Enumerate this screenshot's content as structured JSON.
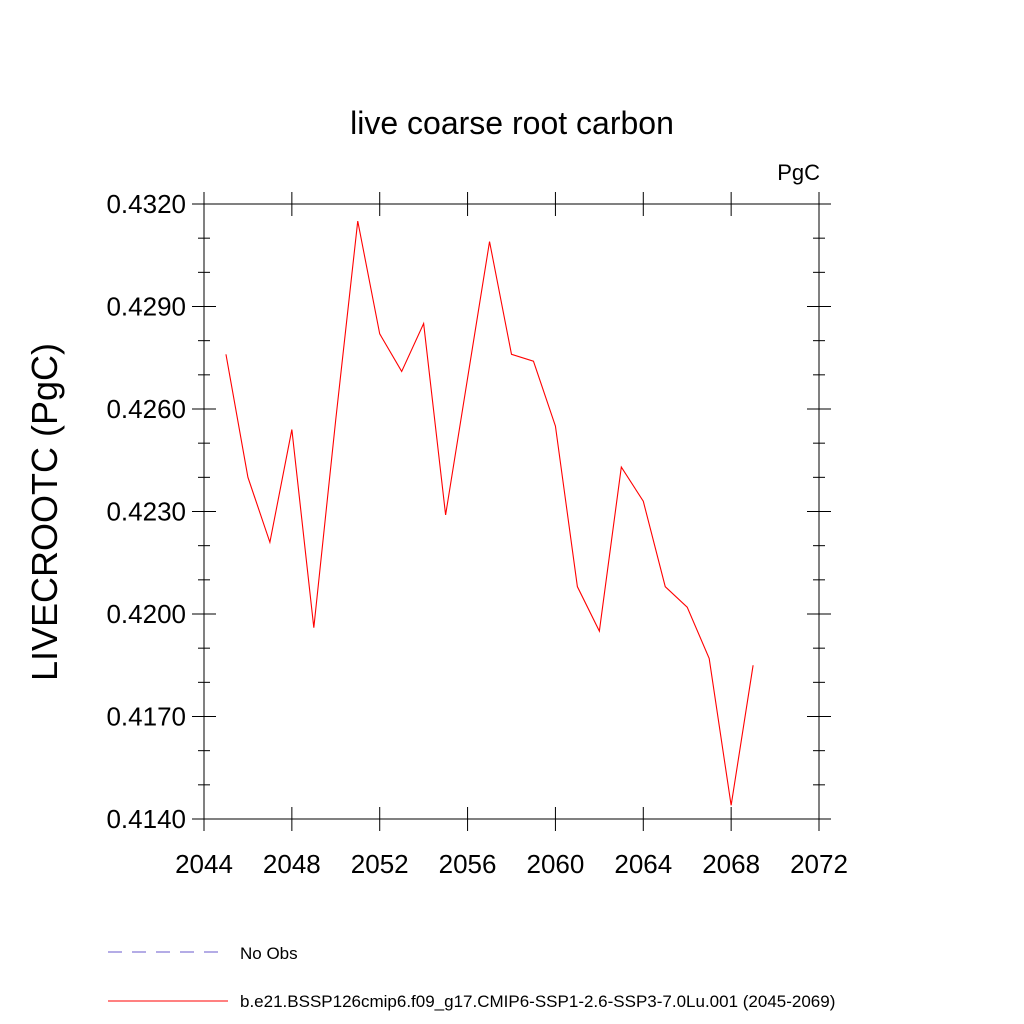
{
  "chart_data": {
    "type": "line",
    "title": "live coarse root carbon",
    "units": "PgC",
    "ylabel": "LIVECROOTC  (PgC)",
    "xlabel": "",
    "xlim": [
      2044,
      2072
    ],
    "ylim": [
      0.414,
      0.432
    ],
    "x_ticks": [
      "2044",
      "2048",
      "2052",
      "2056",
      "2060",
      "2064",
      "2068",
      "2072"
    ],
    "y_ticks": [
      "0.4140",
      "0.4170",
      "0.4200",
      "0.4230",
      "0.4260",
      "0.4290",
      "0.4320"
    ],
    "x_tick_values": [
      2044,
      2048,
      2052,
      2056,
      2060,
      2064,
      2068,
      2072
    ],
    "y_tick_values": [
      0.414,
      0.417,
      0.42,
      0.423,
      0.426,
      0.429,
      0.432
    ],
    "grid": false,
    "legend_position": "bottom",
    "series": [
      {
        "name": "b.e21.BSSP126cmip6.f09_g17.CMIP6-SSP1-2.6-SSP3-7.0Lu.001 (2045-2069)",
        "color": "#ff0000",
        "style": "solid",
        "x": [
          2045,
          2046,
          2047,
          2048,
          2049,
          2050,
          2051,
          2052,
          2053,
          2054,
          2055,
          2056,
          2057,
          2058,
          2059,
          2060,
          2061,
          2062,
          2063,
          2064,
          2065,
          2066,
          2067,
          2068,
          2069
        ],
        "y": [
          0.4276,
          0.424,
          0.4221,
          0.4254,
          0.4196,
          0.4257,
          0.4315,
          0.4282,
          0.4271,
          0.4285,
          0.4229,
          0.4269,
          0.4309,
          0.4276,
          0.4274,
          0.4255,
          0.4208,
          0.4195,
          0.4243,
          0.4233,
          0.4208,
          0.4202,
          0.4187,
          0.4144,
          0.4185
        ]
      }
    ],
    "legend": [
      {
        "label": "No Obs",
        "color": "#6a5acd",
        "style": "dashed"
      },
      {
        "label": "b.e21.BSSP126cmip6.f09_g17.CMIP6-SSP1-2.6-SSP3-7.0Lu.001 (2045-2069)",
        "color": "#ff0000",
        "style": "solid"
      }
    ]
  }
}
